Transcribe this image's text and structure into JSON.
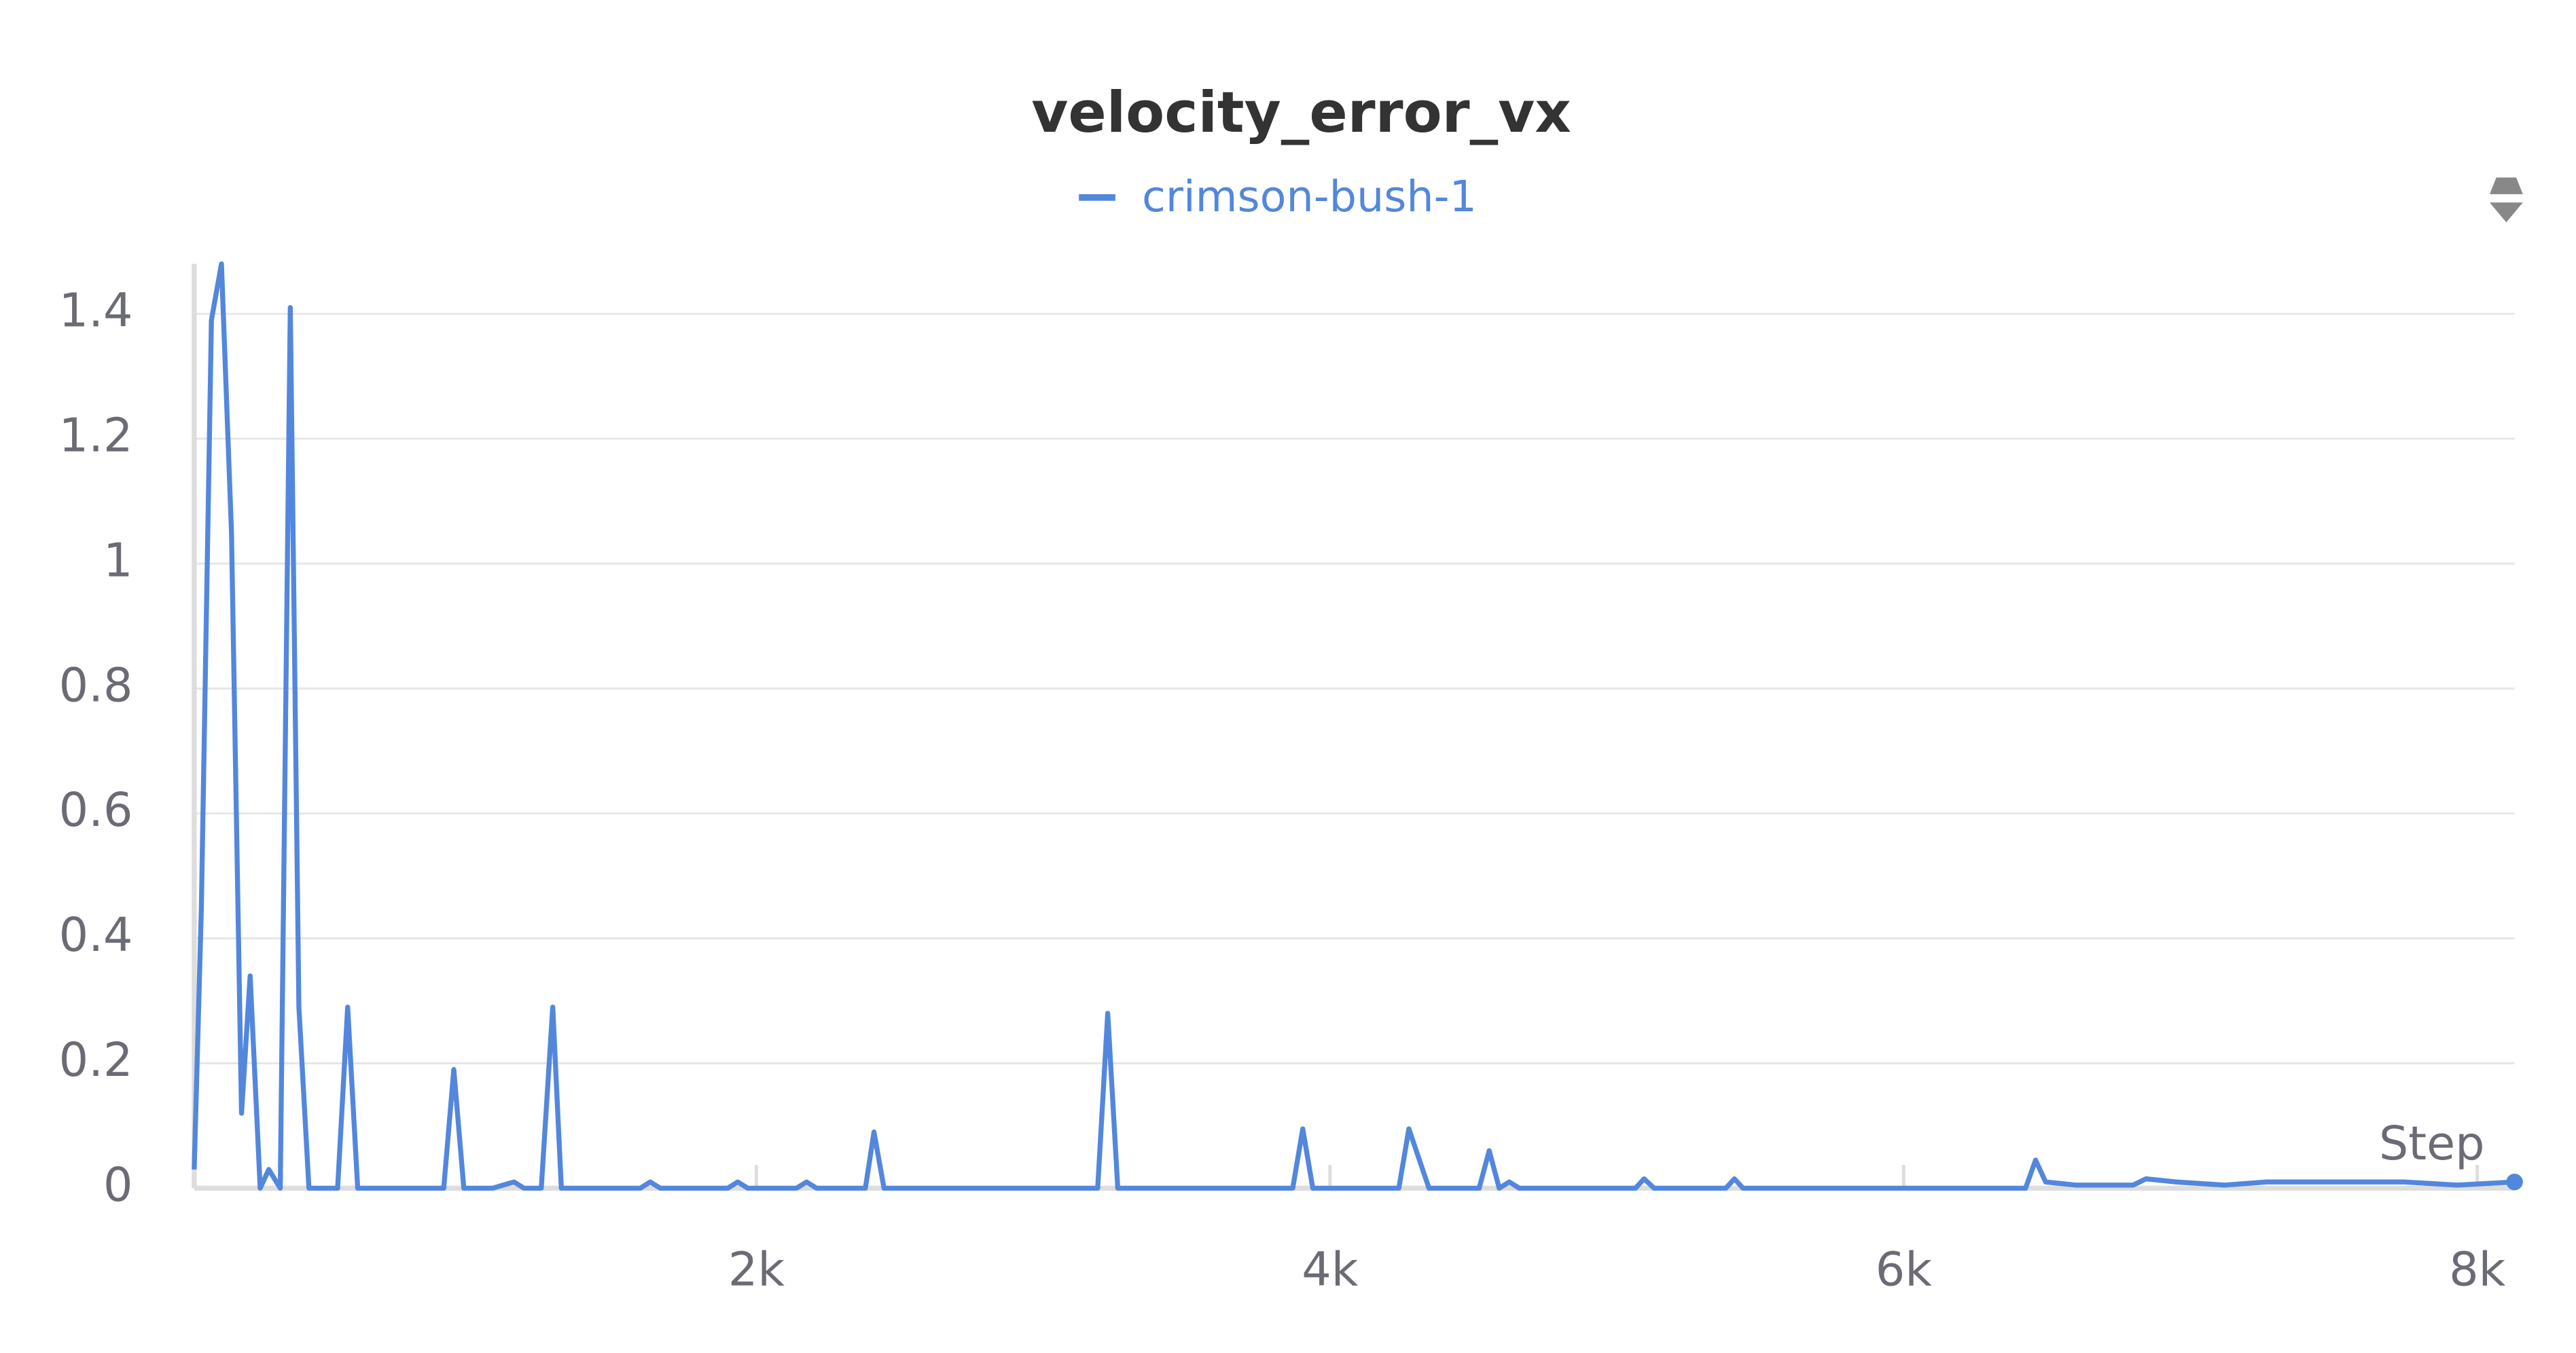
{
  "chart_data": {
    "type": "line",
    "title": "velocity_error_vx",
    "x_label": "Step",
    "x": [
      40,
      65,
      100,
      135,
      170,
      205,
      235,
      270,
      300,
      340,
      375,
      405,
      440,
      540,
      575,
      610,
      910,
      945,
      980,
      1080,
      1155,
      1190,
      1250,
      1290,
      1320,
      1595,
      1630,
      1665,
      1900,
      1935,
      1970,
      2140,
      2175,
      2210,
      2380,
      2410,
      2445,
      3190,
      3225,
      3260,
      3870,
      3905,
      3940,
      4240,
      4275,
      4345,
      4520,
      4555,
      4590,
      4625,
      4660,
      5065,
      5095,
      5130,
      5380,
      5410,
      5440,
      5845,
      6425,
      6460,
      6495,
      6600,
      6800,
      6845,
      6950,
      7120,
      7265,
      7470,
      7745,
      7930,
      8130
    ],
    "series": [
      {
        "name": "crimson-bush-1",
        "color": "#5387dd",
        "values": [
          0.03,
          0.45,
          1.39,
          1.48,
          1.05,
          0.12,
          0.34,
          0,
          0.03,
          0,
          1.41,
          0.29,
          0,
          0,
          0.29,
          0,
          0,
          0.19,
          0,
          0,
          0.01,
          0,
          0,
          0.29,
          0,
          0,
          0.01,
          0,
          0,
          0.01,
          0,
          0,
          0.01,
          0,
          0,
          0.09,
          0,
          0,
          0.28,
          0,
          0,
          0.095,
          0,
          0,
          0.095,
          0,
          0,
          0.06,
          0,
          0.01,
          0,
          0,
          0.015,
          0,
          0,
          0.015,
          0,
          0,
          0,
          0.045,
          0.01,
          0.005,
          0.005,
          0.015,
          0.01,
          0.005,
          0.01,
          0.01,
          0.01,
          0.005,
          0.01
        ]
      }
    ],
    "xlim": [
      40,
      8130
    ],
    "xticks": [
      {
        "value": 2000,
        "label": "2k"
      },
      {
        "value": 4000,
        "label": "4k"
      },
      {
        "value": 6000,
        "label": "6k"
      },
      {
        "value": 8000,
        "label": "8k"
      }
    ],
    "ylim": [
      0,
      1.48
    ],
    "yticks": [
      0,
      0.2,
      0.4,
      0.6,
      0.8,
      1,
      1.2,
      1.4
    ],
    "grid": true
  }
}
